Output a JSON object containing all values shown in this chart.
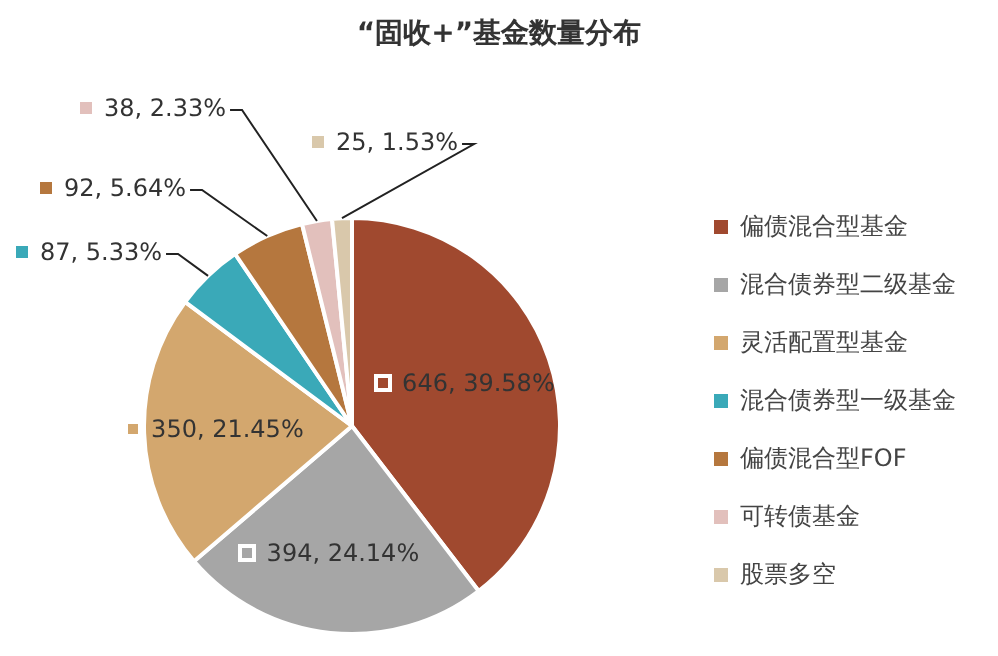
{
  "chart_data": {
    "type": "pie",
    "title": "“固收+”基金数量分布",
    "categories": [
      "偏债混合型基金",
      "混合债券型二级基金",
      "灵活配置型基金",
      "混合债券型一级基金",
      "偏债混合型FOF",
      "可转债基金",
      "股票多空"
    ],
    "values": [
      646,
      394,
      350,
      87,
      92,
      38,
      25
    ],
    "value_labels": [
      "646, 39.58%",
      "394, 24.14%",
      "350, 21.45%",
      "87, 5.33%",
      "92, 5.64%",
      "38, 2.33%",
      "25, 1.53%"
    ],
    "colors": [
      "#a0492f",
      "#a6a6a6",
      "#d3a76e",
      "#3aa9b8",
      "#b5773e",
      "#e2c0bc",
      "#d9c8ab"
    ],
    "legend": "right"
  }
}
